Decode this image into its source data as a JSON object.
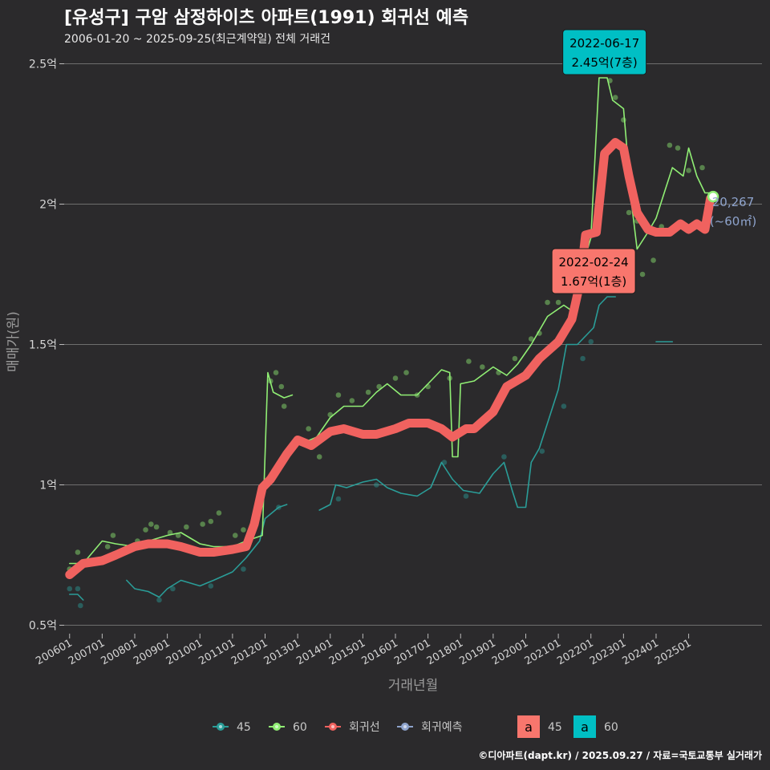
{
  "title": "[유성구] 구암 삼정하이츠 아파트(1991) 회귀선 예측",
  "subtitle": "2006-01-20 ~ 2025-09-25(최근계약일) 전체 거래건",
  "caption": "©디아파트(dapt.kr) / 2025.09.27 / 자료=국토교통부 실거래가",
  "colors": {
    "background": "#2b2a2c",
    "grid": "#6e6e6e",
    "s45": "#2a9d98",
    "s60": "#90ee74",
    "regression": "#f0625f",
    "forecast": "#8ea3cc",
    "annotation45": "#f8766d",
    "annotation60": "#00bfc4"
  },
  "chart_data": {
    "type": "line",
    "xlabel": "거래년월",
    "ylabel": "매매가(원)",
    "x_range": [
      "2005-11",
      "2027-04"
    ],
    "ylim": [
      0.47,
      2.55
    ],
    "yticks": [
      {
        "v": 0.5,
        "label": "0.5억"
      },
      {
        "v": 1.0,
        "label": "1억"
      },
      {
        "v": 1.5,
        "label": "1.5억"
      },
      {
        "v": 2.0,
        "label": "2억"
      },
      {
        "v": 2.5,
        "label": "2.5억"
      }
    ],
    "xticks": [
      "200601",
      "200701",
      "200801",
      "200901",
      "201001",
      "201101",
      "201201",
      "201301",
      "201401",
      "201501",
      "201601",
      "201701",
      "201801",
      "201901",
      "202001",
      "202101",
      "202201",
      "202301",
      "202401",
      "202501"
    ],
    "series": [
      {
        "name": "45",
        "key": "s45",
        "segments": [
          [
            [
              "2006-01",
              0.61
            ],
            [
              "2006-04",
              0.61
            ],
            [
              "2006-06",
              0.59
            ]
          ],
          [
            [
              "2007-10",
              0.66
            ],
            [
              "2008-01",
              0.63
            ],
            [
              "2008-06",
              0.62
            ],
            [
              "2008-10",
              0.6
            ],
            [
              "2009-01",
              0.63
            ],
            [
              "2009-06",
              0.66
            ],
            [
              "2010-01",
              0.64
            ],
            [
              "2010-06",
              0.66
            ],
            [
              "2011-01",
              0.69
            ],
            [
              "2011-06",
              0.74
            ],
            [
              "2011-11",
              0.8
            ],
            [
              "2012-01",
              0.88
            ],
            [
              "2012-06",
              0.92
            ],
            [
              "2012-09",
              0.93
            ]
          ],
          [
            [
              "2013-09",
              0.91
            ],
            [
              "2014-01",
              0.93
            ],
            [
              "2014-03",
              1.0
            ],
            [
              "2014-07",
              0.99
            ],
            [
              "2015-01",
              1.01
            ],
            [
              "2015-06",
              1.02
            ],
            [
              "2015-10",
              0.99
            ],
            [
              "2016-03",
              0.97
            ],
            [
              "2016-09",
              0.96
            ],
            [
              "2017-02",
              0.99
            ],
            [
              "2017-06",
              1.08
            ],
            [
              "2017-10",
              1.02
            ],
            [
              "2018-02",
              0.98
            ],
            [
              "2018-08",
              0.97
            ],
            [
              "2019-01",
              1.04
            ],
            [
              "2019-05",
              1.08
            ],
            [
              "2019-08",
              0.98
            ],
            [
              "2019-10",
              0.92
            ],
            [
              "2020-01",
              0.92
            ],
            [
              "2020-03",
              1.08
            ],
            [
              "2020-06",
              1.13
            ],
            [
              "2020-09",
              1.22
            ],
            [
              "2021-01",
              1.34
            ],
            [
              "2021-04",
              1.5
            ],
            [
              "2021-08",
              1.5
            ],
            [
              "2021-10",
              1.52
            ],
            [
              "2022-02",
              1.56
            ],
            [
              "2022-04",
              1.64
            ],
            [
              "2022-07",
              1.67
            ],
            [
              "2022-10",
              1.67
            ]
          ],
          [
            [
              "2024-01",
              1.51
            ],
            [
              "2024-07",
              1.51
            ]
          ]
        ]
      },
      {
        "name": "60",
        "key": "s60",
        "segments": [
          [
            [
              "2006-01",
              0.72
            ],
            [
              "2006-06",
              0.72
            ],
            [
              "2007-01",
              0.8
            ],
            [
              "2007-06",
              0.79
            ],
            [
              "2008-01",
              0.78
            ],
            [
              "2008-06",
              0.8
            ],
            [
              "2009-01",
              0.82
            ],
            [
              "2009-06",
              0.83
            ],
            [
              "2010-01",
              0.79
            ],
            [
              "2010-06",
              0.78
            ],
            [
              "2011-01",
              0.78
            ],
            [
              "2011-06",
              0.8
            ],
            [
              "2011-12",
              0.82
            ],
            [
              "2012-02",
              1.4
            ],
            [
              "2012-04",
              1.33
            ],
            [
              "2012-08",
              1.31
            ],
            [
              "2012-11",
              1.32
            ]
          ],
          [
            [
              "2013-03",
              1.15
            ],
            [
              "2013-08",
              1.17
            ],
            [
              "2014-01",
              1.24
            ],
            [
              "2014-06",
              1.28
            ],
            [
              "2015-01",
              1.28
            ],
            [
              "2015-06",
              1.33
            ],
            [
              "2015-10",
              1.36
            ],
            [
              "2016-03",
              1.32
            ],
            [
              "2016-09",
              1.32
            ],
            [
              "2017-03",
              1.38
            ],
            [
              "2017-06",
              1.41
            ],
            [
              "2017-09",
              1.4
            ],
            [
              "2017-10",
              1.1
            ],
            [
              "2017-12",
              1.1
            ],
            [
              "2018-01",
              1.36
            ],
            [
              "2018-06",
              1.37
            ],
            [
              "2019-01",
              1.42
            ],
            [
              "2019-06",
              1.39
            ],
            [
              "2019-10",
              1.43
            ],
            [
              "2020-03",
              1.5
            ],
            [
              "2020-09",
              1.6
            ],
            [
              "2021-03",
              1.64
            ],
            [
              "2021-06",
              1.62
            ],
            [
              "2021-09",
              1.75
            ],
            [
              "2022-01",
              1.88
            ],
            [
              "2022-04",
              2.45
            ],
            [
              "2022-07",
              2.45
            ],
            [
              "2022-09",
              2.37
            ],
            [
              "2023-01",
              2.34
            ],
            [
              "2023-04",
              2.0
            ],
            [
              "2023-06",
              1.84
            ],
            [
              "2023-10",
              1.9
            ],
            [
              "2024-01",
              1.95
            ],
            [
              "2024-04",
              2.04
            ],
            [
              "2024-07",
              2.13
            ],
            [
              "2024-11",
              2.1
            ],
            [
              "2025-01",
              2.2
            ],
            [
              "2025-04",
              2.1
            ],
            [
              "2025-07",
              2.04
            ],
            [
              "2025-09",
              2.04
            ]
          ]
        ]
      },
      {
        "name": "회귀선",
        "key": "regression",
        "segments": [
          [
            [
              "2006-01",
              0.68
            ],
            [
              "2006-06",
              0.72
            ],
            [
              "2007-01",
              0.73
            ],
            [
              "2007-06",
              0.75
            ],
            [
              "2008-01",
              0.78
            ],
            [
              "2008-06",
              0.79
            ],
            [
              "2009-01",
              0.79
            ],
            [
              "2009-06",
              0.78
            ],
            [
              "2010-01",
              0.76
            ],
            [
              "2010-06",
              0.76
            ],
            [
              "2011-01",
              0.77
            ],
            [
              "2011-06",
              0.78
            ],
            [
              "2011-09",
              0.86
            ],
            [
              "2011-12",
              0.99
            ],
            [
              "2012-03",
              1.02
            ],
            [
              "2012-09",
              1.11
            ],
            [
              "2013-01",
              1.16
            ],
            [
              "2013-06",
              1.14
            ],
            [
              "2014-01",
              1.19
            ],
            [
              "2014-06",
              1.2
            ],
            [
              "2015-01",
              1.18
            ],
            [
              "2015-06",
              1.18
            ],
            [
              "2016-01",
              1.2
            ],
            [
              "2016-06",
              1.22
            ],
            [
              "2017-01",
              1.22
            ],
            [
              "2017-06",
              1.2
            ],
            [
              "2017-10",
              1.17
            ],
            [
              "2018-03",
              1.2
            ],
            [
              "2018-06",
              1.2
            ],
            [
              "2019-01",
              1.26
            ],
            [
              "2019-06",
              1.35
            ],
            [
              "2020-01",
              1.39
            ],
            [
              "2020-06",
              1.45
            ],
            [
              "2021-01",
              1.51
            ],
            [
              "2021-06",
              1.59
            ],
            [
              "2021-09",
              1.72
            ],
            [
              "2021-11",
              1.89
            ],
            [
              "2022-03",
              1.9
            ],
            [
              "2022-06",
              2.18
            ],
            [
              "2022-10",
              2.22
            ],
            [
              "2023-01",
              2.2
            ],
            [
              "2023-03",
              2.1
            ],
            [
              "2023-06",
              1.97
            ],
            [
              "2023-10",
              1.91
            ],
            [
              "2024-01",
              1.9
            ],
            [
              "2024-06",
              1.9
            ],
            [
              "2024-10",
              1.93
            ],
            [
              "2025-01",
              1.91
            ],
            [
              "2025-04",
              1.93
            ],
            [
              "2025-07",
              1.91
            ],
            [
              "2025-09",
              2.02
            ]
          ]
        ]
      }
    ],
    "points": [
      {
        "key": "s45",
        "pts": [
          [
            "2006-01",
            0.63
          ],
          [
            "2006-04",
            0.63
          ],
          [
            "2006-05",
            0.57
          ],
          [
            "2008-10",
            0.59
          ],
          [
            "2009-03",
            0.63
          ],
          [
            "2010-05",
            0.64
          ],
          [
            "2011-05",
            0.7
          ],
          [
            "2012-06",
            0.92
          ],
          [
            "2014-04",
            0.95
          ],
          [
            "2015-06",
            1.0
          ],
          [
            "2017-07",
            1.08
          ],
          [
            "2018-03",
            0.96
          ],
          [
            "2019-05",
            1.1
          ],
          [
            "2020-07",
            1.12
          ],
          [
            "2021-03",
            1.28
          ],
          [
            "2021-10",
            1.45
          ],
          [
            "2022-01",
            1.51
          ]
        ]
      },
      {
        "key": "s60",
        "pts": [
          [
            "2006-01",
            0.7
          ],
          [
            "2006-04",
            0.76
          ],
          [
            "2007-03",
            0.78
          ],
          [
            "2007-05",
            0.82
          ],
          [
            "2008-02",
            0.8
          ],
          [
            "2008-05",
            0.84
          ],
          [
            "2008-07",
            0.86
          ],
          [
            "2008-09",
            0.85
          ],
          [
            "2009-02",
            0.83
          ],
          [
            "2009-05",
            0.82
          ],
          [
            "2009-08",
            0.85
          ],
          [
            "2010-02",
            0.86
          ],
          [
            "2010-05",
            0.87
          ],
          [
            "2010-08",
            0.9
          ],
          [
            "2011-02",
            0.82
          ],
          [
            "2011-05",
            0.84
          ],
          [
            "2012-03",
            1.37
          ],
          [
            "2012-05",
            1.4
          ],
          [
            "2012-07",
            1.35
          ],
          [
            "2012-08",
            1.28
          ],
          [
            "2013-05",
            1.2
          ],
          [
            "2013-09",
            1.1
          ],
          [
            "2014-01",
            1.25
          ],
          [
            "2014-04",
            1.32
          ],
          [
            "2014-09",
            1.3
          ],
          [
            "2015-03",
            1.33
          ],
          [
            "2015-07",
            1.35
          ],
          [
            "2016-01",
            1.38
          ],
          [
            "2016-05",
            1.4
          ],
          [
            "2016-09",
            1.32
          ],
          [
            "2017-01",
            1.35
          ],
          [
            "2017-09",
            1.38
          ],
          [
            "2018-04",
            1.44
          ],
          [
            "2018-09",
            1.42
          ],
          [
            "2019-03",
            1.4
          ],
          [
            "2019-06",
            1.35
          ],
          [
            "2019-09",
            1.45
          ],
          [
            "2020-03",
            1.52
          ],
          [
            "2020-06",
            1.54
          ],
          [
            "2020-09",
            1.65
          ],
          [
            "2021-01",
            1.65
          ],
          [
            "2021-07",
            1.8
          ],
          [
            "2022-03",
            1.74
          ],
          [
            "2022-08",
            2.44
          ],
          [
            "2022-10",
            2.38
          ],
          [
            "2023-01",
            2.3
          ],
          [
            "2023-03",
            1.97
          ],
          [
            "2023-06",
            1.94
          ],
          [
            "2023-08",
            1.75
          ],
          [
            "2023-12",
            1.8
          ],
          [
            "2024-03",
            1.92
          ],
          [
            "2024-06",
            2.21
          ],
          [
            "2024-09",
            2.2
          ],
          [
            "2025-01",
            2.12
          ],
          [
            "2025-06",
            2.13
          ]
        ]
      }
    ],
    "forecast": {
      "x": "2025-10",
      "y": 2.0267,
      "label": "20,267",
      "sublabel": "(~60㎡)"
    },
    "annotations": [
      {
        "type": "45",
        "date": "2022-02-24",
        "text": "1.67억(1층)",
        "x": "2022-02",
        "y": 1.67
      },
      {
        "type": "60",
        "date": "2022-06-17",
        "text": "2.45억(7층)",
        "x": "2022-06",
        "y": 2.45
      }
    ],
    "legend": {
      "position": "bottom",
      "items": [
        {
          "label": "45",
          "key": "s45"
        },
        {
          "label": "60",
          "key": "s60"
        },
        {
          "label": "회귀선",
          "key": "regression"
        },
        {
          "label": "회귀예측",
          "key": "forecast"
        }
      ],
      "box_items": [
        {
          "glyph": "a",
          "label": "45",
          "key": "annotation45"
        },
        {
          "glyph": "a",
          "label": "60",
          "key": "annotation60"
        }
      ]
    }
  }
}
